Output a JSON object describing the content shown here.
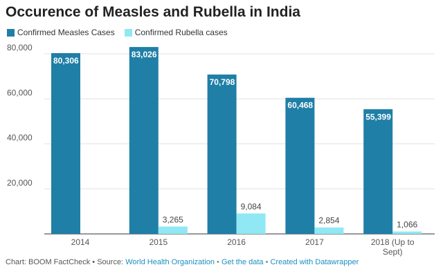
{
  "chart_data": {
    "type": "bar",
    "title": "Occurence of Measles and Rubella in India",
    "categories": [
      "2014",
      "2015",
      "2016",
      "2017",
      "2018 (Up to Sept)"
    ],
    "series": [
      {
        "name": "Confirmed Measles Cases",
        "color": "#1f7fa6",
        "values": [
          80306,
          83026,
          70798,
          60468,
          55399
        ],
        "labels": [
          "80,306",
          "83,026",
          "70,798",
          "60,468",
          "55,399"
        ]
      },
      {
        "name": "Confirmed Rubella cases",
        "color": "#8fe8f4",
        "values": [
          0,
          3265,
          9084,
          2854,
          1066
        ],
        "labels": [
          "",
          "3,265",
          "9,084",
          "2,854",
          "1,066"
        ]
      }
    ],
    "ylim": [
      0,
      80000
    ],
    "yticks": [
      {
        "value": 20000,
        "label": "20,000"
      },
      {
        "value": 40000,
        "label": "40,000"
      },
      {
        "value": 60000,
        "label": "60,000"
      },
      {
        "value": 80000,
        "label": "80,000"
      }
    ],
    "xlabel": "",
    "ylabel": "",
    "grid": true,
    "legend_position": "top-left"
  },
  "footer": {
    "prefix": "Chart: BOOM FactCheck • Source: ",
    "source_link": "World Health Organization",
    "sep1": " • ",
    "data_link": "Get the data",
    "sep2": " • ",
    "created_link": "Created with Datawrapper"
  }
}
